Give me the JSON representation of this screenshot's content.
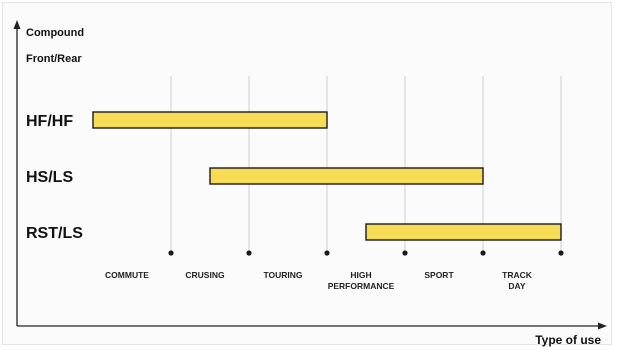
{
  "chart_data": {
    "type": "bar",
    "orientation": "horizontal-range",
    "ylabel": "Compound",
    "ylabel_sub": "Front/Rear",
    "xlabel": "Type of use",
    "x_ticks": [
      "COMMUTE",
      "CRUSING",
      "TOURING",
      "HIGH PERFORMANCE",
      "SPORT",
      "TRACK DAY"
    ],
    "x_range": [
      0,
      6
    ],
    "categories": [
      "HF/HF",
      "HS/LS",
      "RST/LS"
    ],
    "ranges": [
      [
        0,
        3
      ],
      [
        1.5,
        5
      ],
      [
        3.5,
        6
      ]
    ],
    "grid": "vertical",
    "colors": {
      "bar_fill": "#f7dc55",
      "bar_stroke": "#1a1a1a",
      "grid": "#cfcfcf",
      "axis": "#222222"
    }
  }
}
